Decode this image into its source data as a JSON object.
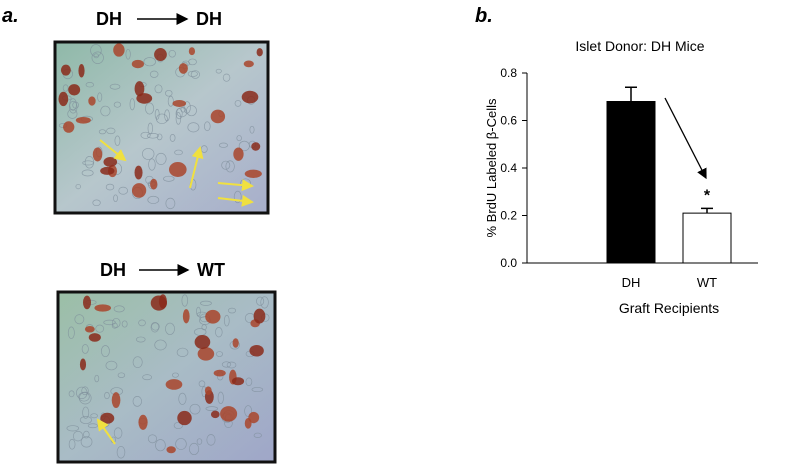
{
  "panel_a": {
    "label": "a.",
    "images": [
      {
        "from": "DH",
        "to": "DH"
      },
      {
        "from": "DH",
        "to": "WT"
      }
    ]
  },
  "chart_data": {
    "type": "bar",
    "panel_label": "b.",
    "title": "Islet Donor: DH Mice",
    "y_label": "% BrdU Labeled β-Cells",
    "x_label": "Graft Recipients",
    "categories": [
      "DH",
      "WT"
    ],
    "values": [
      0.68,
      0.21
    ],
    "errors": [
      0.06,
      0.02
    ],
    "colors": [
      "#000000",
      "#ffffff"
    ],
    "ylim": [
      0,
      0.8
    ],
    "yticks": [
      {
        "value": 0,
        "label": "0.0"
      },
      0.2,
      0.4,
      0.6,
      0.8
    ],
    "annotations": [
      {
        "text": "*",
        "category": 1
      }
    ]
  }
}
